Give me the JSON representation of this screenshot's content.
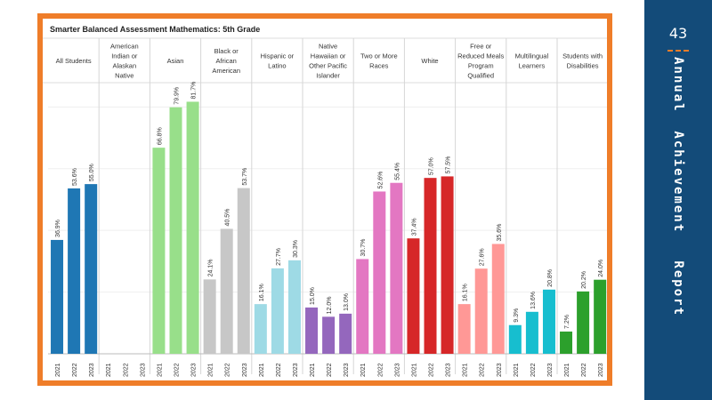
{
  "side_panel": {
    "page_number": "43",
    "title": "Annual  Achievement   Report"
  },
  "chart_data": {
    "type": "bar",
    "title": "Smarter Balanced Assessment Mathematics: 5th Grade",
    "ylim": [
      0,
      85
    ],
    "grid": true,
    "legend": "none",
    "groups": [
      {
        "label": "All Students",
        "color": "#1f77b4",
        "years": [
          "2021",
          "2022",
          "2023"
        ],
        "values": [
          36.9,
          53.6,
          55.0
        ],
        "labels": [
          "36.9%",
          "53.6%",
          "55.0%"
        ]
      },
      {
        "label": "American Indian or Alaskan Native",
        "color": "#1f77b4",
        "years": [
          "2021",
          "2022",
          "2023"
        ],
        "values": [
          null,
          null,
          null
        ],
        "labels": [
          "",
          "",
          ""
        ]
      },
      {
        "label": "Asian",
        "color": "#98df8a",
        "years": [
          "2021",
          "2022",
          "2023"
        ],
        "values": [
          66.8,
          79.9,
          81.7
        ],
        "labels": [
          "66.8%",
          "79.9%",
          "81.7%"
        ]
      },
      {
        "label": "Black or African American",
        "color": "#c7c7c7",
        "years": [
          "2021",
          "2022",
          "2023"
        ],
        "values": [
          24.1,
          40.5,
          53.7
        ],
        "labels": [
          "24.1%",
          "40.5%",
          "53.7%"
        ]
      },
      {
        "label": "Hispanic or Latino",
        "color": "#9edae5",
        "years": [
          "2021",
          "2022",
          "2023"
        ],
        "values": [
          16.1,
          27.7,
          30.3
        ],
        "labels": [
          "16.1%",
          "27.7%",
          "30.3%"
        ]
      },
      {
        "label": "Native Hawaiian or Other Pacific Islander",
        "color": "#9467bd",
        "years": [
          "2021",
          "2022",
          "2023"
        ],
        "values": [
          15.0,
          12.0,
          13.0
        ],
        "labels": [
          "15.0%",
          "12.0%",
          "13.0%"
        ]
      },
      {
        "label": "Two or More Races",
        "color": "#e377c2",
        "years": [
          "2021",
          "2022",
          "2023"
        ],
        "values": [
          30.7,
          52.6,
          55.4
        ],
        "labels": [
          "30.7%",
          "52.6%",
          "55.4%"
        ]
      },
      {
        "label": "White",
        "color": "#d62728",
        "years": [
          "2021",
          "2022",
          "2023"
        ],
        "values": [
          37.4,
          57.0,
          57.5
        ],
        "labels": [
          "37.4%",
          "57.0%",
          "57.5%"
        ]
      },
      {
        "label": "Free or Reduced Meals Program Qualified",
        "color": "#ff9896",
        "years": [
          "2021",
          "2022",
          "2023"
        ],
        "values": [
          16.1,
          27.6,
          35.6
        ],
        "labels": [
          "16.1%",
          "27.6%",
          "35.6%"
        ]
      },
      {
        "label": "Multilingual Learners",
        "color": "#17becf",
        "years": [
          "2021",
          "2022",
          "2023"
        ],
        "values": [
          9.3,
          13.6,
          20.8
        ],
        "labels": [
          "9.3%",
          "13.6%",
          "20.8%"
        ]
      },
      {
        "label": "Students with Disabilities",
        "color": "#2ca02c",
        "years": [
          "2021",
          "2022",
          "2023"
        ],
        "values": [
          7.2,
          20.2,
          24.0
        ],
        "labels": [
          "7.2%",
          "20.2%",
          "24.0%"
        ]
      }
    ]
  }
}
